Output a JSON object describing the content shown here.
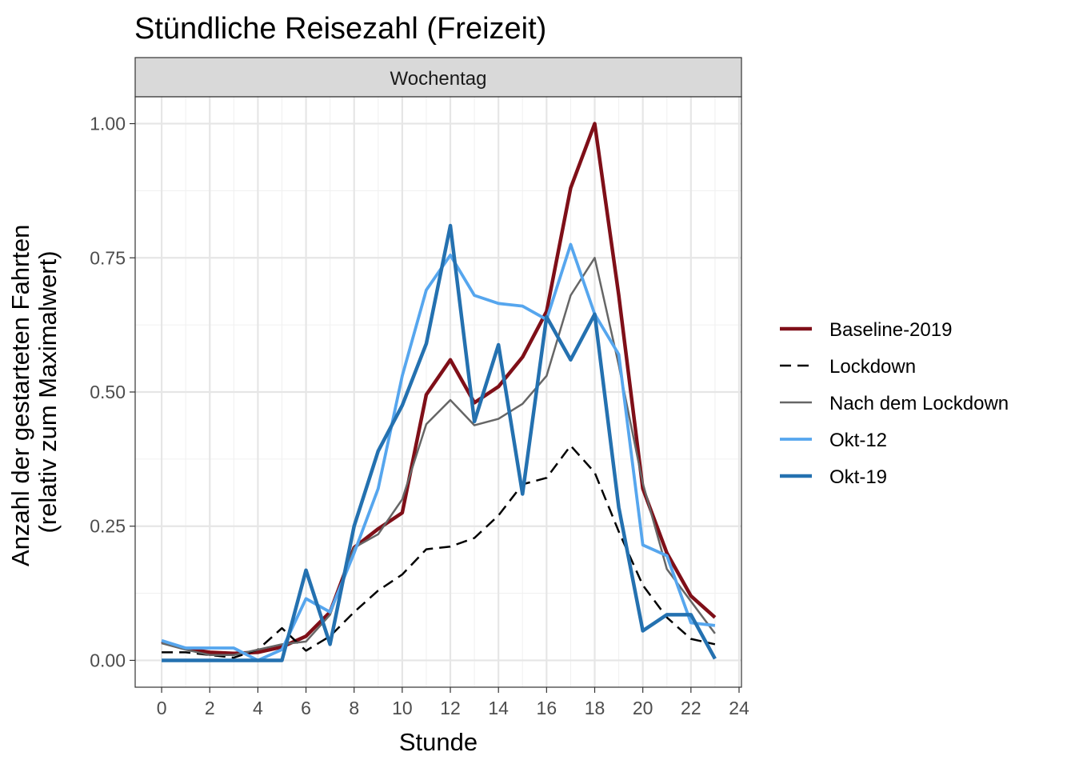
{
  "chart_data": {
    "type": "line",
    "title": "Stündliche Reisezahl (Freizeit)",
    "facet_label": "Wochentag",
    "xlabel": "Stunde",
    "ylabel_lines": [
      "Anzahl der gestarteten Fahrten",
      "(relativ zum Maximalwert)"
    ],
    "xlim": [
      -1.1,
      24.1
    ],
    "ylim": [
      -0.05,
      1.05
    ],
    "x_ticks": [
      0,
      2,
      4,
      6,
      8,
      10,
      12,
      14,
      16,
      18,
      20,
      22,
      24
    ],
    "x_tick_labels": [
      "0",
      "2",
      "4",
      "6",
      "8",
      "10",
      "12",
      "14",
      "16",
      "18",
      "20",
      "22",
      "24"
    ],
    "y_ticks": [
      0,
      0.25,
      0.5,
      0.75,
      1.0
    ],
    "y_tick_labels": [
      "0.00",
      "0.25",
      "0.50",
      "0.75",
      "1.00"
    ],
    "grid": true,
    "legend_position": "right",
    "x": [
      0,
      1,
      2,
      3,
      4,
      5,
      6,
      7,
      8,
      9,
      10,
      11,
      12,
      13,
      14,
      15,
      16,
      17,
      18,
      19,
      20,
      21,
      22,
      23
    ],
    "series": [
      {
        "name": "Baseline-2019",
        "color": "#7f0f18",
        "width": 4.5,
        "dash": "",
        "values": [
          0.035,
          0.022,
          0.015,
          0.013,
          0.015,
          0.025,
          0.045,
          0.09,
          0.21,
          0.245,
          0.275,
          0.495,
          0.56,
          0.48,
          0.51,
          0.565,
          0.65,
          0.88,
          1.0,
          0.68,
          0.32,
          0.2,
          0.12,
          0.08
        ]
      },
      {
        "name": "Lockdown",
        "color": "#000000",
        "width": 2.5,
        "dash": "14,8",
        "values": [
          0.015,
          0.015,
          0.01,
          0.005,
          0.02,
          0.06,
          0.018,
          0.045,
          0.09,
          0.13,
          0.16,
          0.207,
          0.212,
          0.228,
          0.27,
          0.328,
          0.34,
          0.4,
          0.35,
          0.24,
          0.14,
          0.08,
          0.04,
          0.03
        ]
      },
      {
        "name": "Nach dem Lockdown",
        "color": "#666666",
        "width": 2.5,
        "dash": "",
        "values": [
          0.032,
          0.02,
          0.01,
          0.01,
          0.02,
          0.03,
          0.035,
          0.085,
          0.21,
          0.235,
          0.3,
          0.44,
          0.485,
          0.438,
          0.45,
          0.478,
          0.53,
          0.68,
          0.75,
          0.55,
          0.33,
          0.17,
          0.11,
          0.05
        ]
      },
      {
        "name": "Okt-12",
        "color": "#56a6ee",
        "width": 3.8,
        "dash": "",
        "values": [
          0.037,
          0.023,
          0.023,
          0.023,
          0.0,
          0.02,
          0.115,
          0.09,
          0.2,
          0.32,
          0.53,
          0.69,
          0.755,
          0.68,
          0.665,
          0.66,
          0.635,
          0.775,
          0.645,
          0.57,
          0.215,
          0.195,
          0.07,
          0.065
        ]
      },
      {
        "name": "Okt-19",
        "color": "#2471b0",
        "width": 4.5,
        "dash": "",
        "values": [
          0.0,
          0.0,
          0.0,
          0.0,
          0.0,
          0.0,
          0.168,
          0.03,
          0.25,
          0.39,
          0.475,
          0.59,
          0.81,
          0.445,
          0.588,
          0.31,
          0.64,
          0.56,
          0.645,
          0.285,
          0.055,
          0.085,
          0.085,
          0.003
        ]
      }
    ]
  }
}
